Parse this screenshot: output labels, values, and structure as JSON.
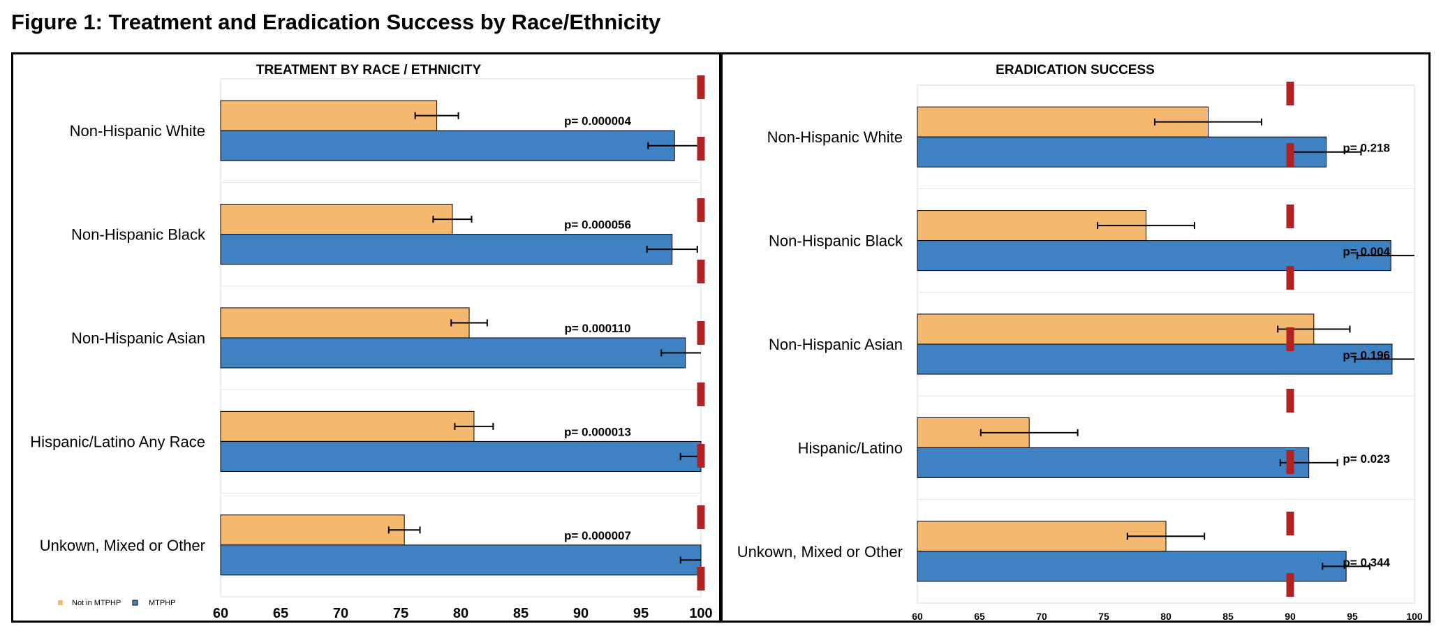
{
  "figure_title": "Figure 1: Treatment and Eradication Success by Race/Ethnicity",
  "colors": {
    "not_in_mtphp": "#F4B96E",
    "mtphp": "#3F82C3",
    "reference_line": "#B22222",
    "error_bar": "#000000"
  },
  "legend": {
    "not_in_mtphp": "Not in MTPHP",
    "mtphp": "MTPHP"
  },
  "chart_data": [
    {
      "type": "bar",
      "orientation": "horizontal",
      "title": "TREATMENT BY RACE / ETHNICITY",
      "categories": [
        "Non-Hispanic White",
        "Non-Hispanic Black",
        "Non-Hispanic Asian",
        "Hispanic/Latino Any Race",
        "Unkown, Mixed or Other"
      ],
      "series": [
        {
          "name": "Not in MTPHP",
          "values": [
            78,
            79.3,
            80.7,
            81.1,
            75.3
          ],
          "error": [
            1.8,
            1.6,
            1.5,
            1.6,
            1.3
          ]
        },
        {
          "name": "MTPHP",
          "values": [
            97.8,
            97.6,
            98.7,
            100,
            100
          ],
          "error": [
            2.2,
            2.1,
            2.0,
            1.7,
            1.7
          ]
        }
      ],
      "p_values": [
        "p= 0.000004",
        "p= 0.000056",
        "p= 0.000110",
        "p= 0.000013",
        "p= 0.000007"
      ],
      "x_ticks": [
        "60",
        "65",
        "70",
        "75",
        "80",
        "85",
        "90",
        "95",
        "100"
      ],
      "xlim": [
        60,
        100
      ],
      "reference_line": 100,
      "grid": true,
      "legend_position": "bottom-left"
    },
    {
      "type": "bar",
      "orientation": "horizontal",
      "title": "ERADICATION SUCCESS",
      "categories": [
        "Non-Hispanic White",
        "Non-Hispanic Black",
        "Non-Hispanic Asian",
        "Hispanic/Latino",
        "Unkown, Mixed or Other"
      ],
      "series": [
        {
          "name": "Not in MTPHP",
          "values": [
            83.4,
            78.4,
            91.9,
            69,
            80
          ],
          "error": [
            4.3,
            3.9,
            2.9,
            3.9,
            3.1
          ]
        },
        {
          "name": "MTPHP",
          "values": [
            92.9,
            98.1,
            98.2,
            91.5,
            94.5
          ],
          "error": [
            2.8,
            2.7,
            3.0,
            2.3,
            1.9
          ]
        }
      ],
      "p_values": [
        "p= 0.218",
        "p= 0.004",
        "p= 0.196",
        "p= 0.023",
        "p= 0.344"
      ],
      "x_ticks": [
        "60",
        "65",
        "70",
        "75",
        "80",
        "85",
        "90",
        "95",
        "100"
      ],
      "xlim": [
        60,
        100
      ],
      "reference_line": 90,
      "grid": true
    }
  ]
}
